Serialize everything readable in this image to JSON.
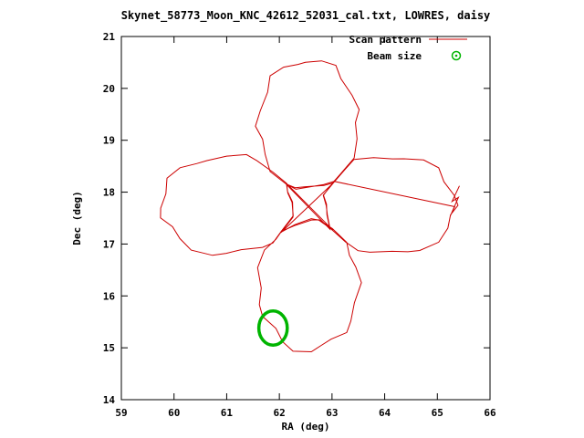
{
  "window": {
    "background": "#ffffff"
  },
  "chart_data": {
    "type": "line",
    "title": "Skynet_58773_Moon_KNC_42612_52031_cal.txt, LOWRES, daisy",
    "xlabel": "RA (deg)",
    "ylabel": "Dec (deg)",
    "xlim": [
      59,
      66
    ],
    "ylim": [
      14,
      21
    ],
    "xticks": [
      59,
      60,
      61,
      62,
      63,
      64,
      65,
      66
    ],
    "yticks": [
      14,
      15,
      16,
      17,
      18,
      19,
      20,
      21
    ],
    "grid": false,
    "border_color": "#000000",
    "legend": {
      "position": "top-right-inside",
      "entries": [
        {
          "label": "Scan pattern",
          "color": "#cc0000",
          "sample": "line"
        },
        {
          "label": "Beam size",
          "color": "#00b400",
          "sample": "circle-marker"
        }
      ]
    },
    "series": [
      {
        "name": "Scan pattern",
        "color": "#cc0000",
        "pattern": "daisy",
        "daisy_params": {
          "center": [
            62.55,
            17.75
          ],
          "petal_axes_deg": [
            0,
            90,
            180,
            270
          ],
          "lobe_center_dist": 1.55,
          "radius_along": 1.25,
          "radius_cross": 0.95,
          "overlap_deg": 30,
          "step_deg": 15,
          "jitter": 0.06
        },
        "start_zigzag": [
          [
            65.42,
            18.12
          ],
          [
            65.28,
            17.82
          ],
          [
            65.4,
            17.9
          ],
          [
            65.25,
            17.55
          ],
          [
            65.33,
            17.72
          ]
        ],
        "extents": {
          "top_petal_tip": [
            62.55,
            20.55
          ],
          "bottom_petal_tip": [
            62.55,
            14.95
          ],
          "left_petal_tip": [
            59.75,
            17.75
          ],
          "right_petal_tip": [
            65.35,
            17.75
          ]
        }
      },
      {
        "name": "Beam size",
        "color": "#00b400",
        "marker": {
          "center": [
            61.88,
            15.38
          ],
          "radius_x": 0.27,
          "radius_y": 0.33,
          "stroke_width": 3.5
        }
      }
    ]
  }
}
